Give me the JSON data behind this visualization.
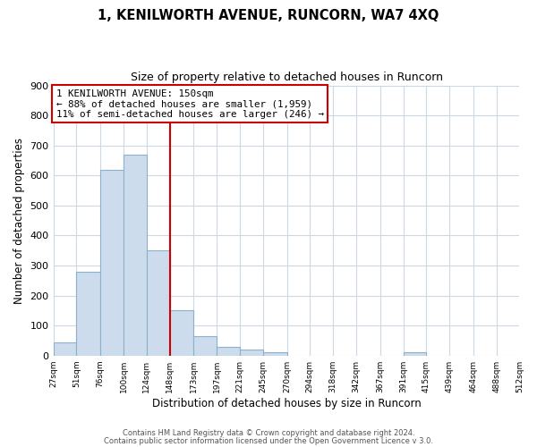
{
  "title": "1, KENILWORTH AVENUE, RUNCORN, WA7 4XQ",
  "subtitle": "Size of property relative to detached houses in Runcorn",
  "xlabel": "Distribution of detached houses by size in Runcorn",
  "ylabel": "Number of detached properties",
  "bar_edges": [
    27,
    51,
    76,
    100,
    124,
    148,
    173,
    197,
    221,
    245,
    270,
    294,
    318,
    342,
    367,
    391,
    415,
    439,
    464,
    488,
    512
  ],
  "bar_heights": [
    45,
    280,
    620,
    670,
    350,
    150,
    65,
    30,
    20,
    10,
    0,
    0,
    0,
    0,
    0,
    10,
    0,
    0,
    0,
    0
  ],
  "bar_color": "#ccdcec",
  "bar_edgecolor": "#8ab0cc",
  "property_line_x": 148,
  "property_line_color": "#cc0000",
  "ylim": [
    0,
    900
  ],
  "yticks": [
    0,
    100,
    200,
    300,
    400,
    500,
    600,
    700,
    800,
    900
  ],
  "annotation_title": "1 KENILWORTH AVENUE: 150sqm",
  "annotation_line1": "← 88% of detached houses are smaller (1,959)",
  "annotation_line2": "11% of semi-detached houses are larger (246) →",
  "annotation_box_color": "#ffffff",
  "annotation_box_edgecolor": "#cc0000",
  "footer1": "Contains HM Land Registry data © Crown copyright and database right 2024.",
  "footer2": "Contains public sector information licensed under the Open Government Licence v 3.0.",
  "background_color": "#ffffff",
  "grid_color": "#ccd8e4"
}
